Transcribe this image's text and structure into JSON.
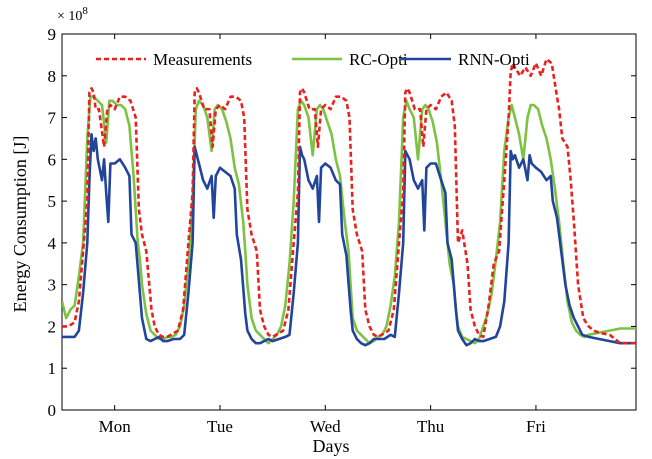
{
  "chart_data": {
    "type": "line",
    "title": "",
    "xlabel": "Days",
    "ylabel": "Energy Consumption [J]",
    "y_multiplier_label": "× 10",
    "y_multiplier_exponent": "8",
    "categories": [
      "Mon",
      "Tue",
      "Wed",
      "Thu",
      "Fri"
    ],
    "x_tick_positions": [
      0.5,
      1.5,
      2.5,
      3.5,
      4.5
    ],
    "xlim": [
      0,
      5.45
    ],
    "ylim": [
      0,
      9
    ],
    "y_ticks": [
      0,
      1,
      2,
      3,
      4,
      5,
      6,
      7,
      8,
      9
    ],
    "y_tick_labels": [
      "0",
      "1",
      "2",
      "3",
      "4",
      "5",
      "6",
      "7",
      "8",
      "9"
    ],
    "grid": false,
    "legend_position": "top",
    "series": [
      {
        "name": "Measurements",
        "color": "#e8221f",
        "dash": "dashed",
        "x": [
          0,
          0.06,
          0.12,
          0.16,
          0.2,
          0.24,
          0.26,
          0.28,
          0.3,
          0.32,
          0.35,
          0.4,
          0.43,
          0.46,
          0.5,
          0.55,
          0.6,
          0.65,
          0.7,
          0.73,
          0.76,
          0.8,
          0.85,
          0.88,
          0.92,
          0.96,
          1.0,
          1.1,
          1.15,
          1.2,
          1.24,
          1.26,
          1.28,
          1.3,
          1.35,
          1.4,
          1.43,
          1.46,
          1.5,
          1.55,
          1.6,
          1.65,
          1.7,
          1.73,
          1.76,
          1.8,
          1.85,
          1.88,
          1.92,
          1.96,
          2.0,
          2.1,
          2.15,
          2.2,
          2.24,
          2.26,
          2.28,
          2.3,
          2.35,
          2.4,
          2.43,
          2.46,
          2.5,
          2.55,
          2.6,
          2.65,
          2.7,
          2.73,
          2.76,
          2.8,
          2.85,
          2.88,
          2.92,
          2.96,
          3.0,
          3.1,
          3.15,
          3.2,
          3.24,
          3.26,
          3.28,
          3.3,
          3.35,
          3.4,
          3.43,
          3.46,
          3.5,
          3.55,
          3.6,
          3.65,
          3.7,
          3.73,
          3.76,
          3.8,
          3.85,
          3.88,
          3.92,
          3.96,
          4.0,
          4.05,
          4.1,
          4.15,
          4.2,
          4.24,
          4.26,
          4.28,
          4.3,
          4.35,
          4.4,
          4.45,
          4.5,
          4.55,
          4.6,
          4.65,
          4.7,
          4.72,
          4.75,
          4.8,
          4.83,
          4.86,
          4.9,
          4.95,
          5.0,
          5.05,
          5.1,
          5.2,
          5.3,
          5.45
        ],
        "y": [
          2.0,
          2.0,
          2.1,
          2.6,
          3.8,
          5.0,
          7.6,
          7.7,
          7.6,
          7.2,
          7.2,
          6.3,
          7.2,
          7.3,
          7.2,
          7.5,
          7.5,
          7.4,
          7.0,
          4.8,
          4.2,
          3.8,
          2.4,
          2.0,
          1.8,
          1.75,
          1.75,
          1.9,
          2.4,
          4.0,
          5.2,
          7.6,
          7.7,
          7.6,
          7.2,
          7.2,
          6.3,
          7.2,
          7.3,
          7.2,
          7.5,
          7.5,
          7.4,
          7.0,
          4.8,
          4.2,
          3.8,
          2.4,
          2.0,
          1.8,
          1.75,
          1.9,
          2.4,
          4.0,
          5.2,
          7.6,
          7.7,
          7.6,
          7.2,
          7.2,
          6.3,
          7.2,
          7.3,
          7.2,
          7.5,
          7.5,
          7.4,
          7.0,
          4.8,
          4.2,
          3.8,
          2.4,
          2.0,
          1.8,
          1.75,
          1.9,
          2.4,
          4.0,
          5.2,
          7.6,
          7.7,
          7.6,
          7.2,
          7.2,
          6.3,
          7.2,
          7.3,
          7.2,
          7.5,
          7.6,
          7.4,
          6.8,
          4.0,
          4.3,
          3.5,
          2.4,
          2.0,
          1.8,
          1.75,
          2.5,
          3.5,
          3.8,
          5.5,
          7.0,
          8.1,
          8.3,
          8.2,
          8.0,
          8.2,
          8.0,
          8.3,
          8.0,
          8.4,
          8.3,
          7.5,
          7.2,
          6.5,
          6.3,
          5.5,
          4.5,
          3.0,
          2.2,
          2.0,
          1.9,
          1.85,
          1.8,
          1.6,
          1.6
        ]
      },
      {
        "name": "RC-Opti",
        "color": "#7dc242",
        "dash": "solid",
        "x": [
          0,
          0.04,
          0.08,
          0.12,
          0.16,
          0.2,
          0.24,
          0.27,
          0.3,
          0.34,
          0.38,
          0.42,
          0.45,
          0.48,
          0.52,
          0.56,
          0.6,
          0.64,
          0.68,
          0.72,
          0.74,
          0.76,
          0.8,
          0.84,
          0.88,
          0.92,
          0.96,
          1.0,
          1.04,
          1.08,
          1.12,
          1.16,
          1.2,
          1.24,
          1.27,
          1.3,
          1.34,
          1.38,
          1.42,
          1.45,
          1.48,
          1.52,
          1.56,
          1.6,
          1.64,
          1.68,
          1.72,
          1.74,
          1.76,
          1.8,
          1.84,
          1.88,
          1.92,
          1.96,
          2.0,
          2.04,
          2.08,
          2.12,
          2.16,
          2.2,
          2.24,
          2.27,
          2.3,
          2.34,
          2.38,
          2.42,
          2.45,
          2.48,
          2.52,
          2.56,
          2.6,
          2.64,
          2.68,
          2.72,
          2.74,
          2.76,
          2.8,
          2.84,
          2.88,
          2.92,
          2.96,
          3.0,
          3.04,
          3.08,
          3.12,
          3.16,
          3.2,
          3.24,
          3.27,
          3.3,
          3.34,
          3.38,
          3.42,
          3.45,
          3.48,
          3.52,
          3.56,
          3.6,
          3.64,
          3.68,
          3.72,
          3.74,
          3.76,
          3.8,
          3.84,
          3.88,
          3.92,
          3.96,
          4.0,
          4.04,
          4.08,
          4.12,
          4.16,
          4.2,
          4.24,
          4.27,
          4.3,
          4.34,
          4.38,
          4.42,
          4.45,
          4.48,
          4.52,
          4.56,
          4.6,
          4.64,
          4.68,
          4.72,
          4.76,
          4.8,
          4.84,
          4.88,
          4.92,
          4.96,
          5.0,
          5.1,
          5.2,
          5.3,
          5.45
        ],
        "y": [
          2.6,
          2.2,
          2.4,
          2.5,
          3.2,
          4.0,
          6.5,
          7.5,
          7.5,
          7.4,
          7.3,
          6.4,
          7.4,
          7.4,
          7.3,
          7.3,
          7.2,
          6.8,
          5.6,
          4.0,
          3.6,
          3.0,
          2.3,
          1.9,
          1.8,
          1.7,
          1.7,
          1.75,
          1.75,
          1.8,
          2.0,
          2.5,
          3.5,
          5.0,
          7.2,
          7.4,
          7.3,
          7.0,
          6.2,
          7.2,
          7.3,
          7.2,
          6.9,
          6.5,
          5.8,
          5.4,
          4.5,
          3.8,
          3.0,
          2.2,
          1.9,
          1.8,
          1.7,
          1.6,
          1.7,
          1.8,
          2.0,
          2.5,
          3.5,
          5.0,
          7.2,
          7.4,
          7.3,
          7.0,
          6.1,
          7.2,
          7.3,
          7.2,
          6.9,
          6.6,
          6.0,
          5.6,
          4.6,
          3.8,
          3.0,
          2.2,
          1.9,
          1.8,
          1.7,
          1.6,
          1.65,
          1.75,
          1.8,
          2.0,
          2.5,
          3.2,
          4.5,
          7.0,
          7.4,
          7.2,
          7.0,
          6.0,
          7.2,
          7.3,
          7.2,
          6.9,
          6.4,
          5.5,
          4.5,
          3.5,
          3.0,
          2.4,
          2.0,
          1.75,
          1.7,
          1.65,
          1.6,
          1.7,
          2.0,
          2.3,
          2.8,
          3.6,
          4.5,
          6.2,
          7.0,
          7.3,
          7.0,
          6.6,
          6.0,
          7.0,
          7.3,
          7.3,
          7.2,
          6.8,
          6.5,
          6.0,
          5.3,
          4.5,
          3.5,
          2.6,
          2.1,
          1.9,
          1.8,
          1.75,
          1.8,
          1.85,
          1.9,
          1.95,
          1.95
        ]
      },
      {
        "name": "RNN-Opti",
        "color": "#22459c",
        "dash": "solid",
        "x": [
          0,
          0.06,
          0.12,
          0.16,
          0.2,
          0.24,
          0.26,
          0.28,
          0.3,
          0.32,
          0.34,
          0.38,
          0.4,
          0.42,
          0.44,
          0.46,
          0.5,
          0.55,
          0.6,
          0.64,
          0.66,
          0.7,
          0.74,
          0.76,
          0.8,
          0.84,
          0.88,
          0.92,
          0.96,
          1.0,
          1.06,
          1.12,
          1.16,
          1.2,
          1.24,
          1.26,
          1.28,
          1.3,
          1.34,
          1.38,
          1.42,
          1.44,
          1.46,
          1.5,
          1.55,
          1.6,
          1.64,
          1.66,
          1.7,
          1.74,
          1.76,
          1.8,
          1.84,
          1.88,
          1.92,
          1.96,
          2.0,
          2.06,
          2.12,
          2.16,
          2.2,
          2.24,
          2.26,
          2.28,
          2.3,
          2.34,
          2.38,
          2.42,
          2.44,
          2.46,
          2.5,
          2.55,
          2.6,
          2.64,
          2.66,
          2.7,
          2.74,
          2.76,
          2.8,
          2.84,
          2.88,
          2.92,
          2.96,
          3.0,
          3.06,
          3.12,
          3.16,
          3.2,
          3.24,
          3.26,
          3.28,
          3.3,
          3.34,
          3.38,
          3.42,
          3.44,
          3.46,
          3.5,
          3.55,
          3.6,
          3.64,
          3.66,
          3.7,
          3.74,
          3.76,
          3.8,
          3.84,
          3.88,
          3.92,
          3.96,
          4.0,
          4.06,
          4.12,
          4.16,
          4.2,
          4.24,
          4.26,
          4.28,
          4.3,
          4.34,
          4.38,
          4.42,
          4.44,
          4.46,
          4.5,
          4.55,
          4.6,
          4.64,
          4.66,
          4.7,
          4.74,
          4.78,
          4.82,
          4.86,
          4.9,
          4.94,
          5.0,
          5.1,
          5.2,
          5.3,
          5.45
        ],
        "y": [
          1.75,
          1.75,
          1.75,
          1.9,
          2.8,
          4.0,
          5.5,
          6.6,
          6.2,
          6.5,
          6.0,
          5.5,
          6.0,
          5.2,
          4.5,
          5.9,
          5.9,
          6.0,
          5.8,
          5.6,
          4.2,
          4.0,
          2.8,
          2.2,
          1.7,
          1.65,
          1.7,
          1.75,
          1.65,
          1.65,
          1.7,
          1.7,
          1.8,
          2.8,
          4.0,
          6.3,
          6.1,
          5.9,
          5.5,
          5.3,
          5.6,
          4.6,
          5.6,
          5.8,
          5.7,
          5.6,
          5.3,
          4.2,
          3.6,
          2.3,
          1.9,
          1.7,
          1.6,
          1.6,
          1.65,
          1.7,
          1.65,
          1.7,
          1.75,
          1.8,
          2.8,
          4.0,
          6.3,
          6.1,
          6.0,
          5.5,
          5.3,
          5.6,
          4.5,
          5.8,
          5.9,
          5.8,
          5.5,
          5.4,
          4.2,
          3.7,
          2.4,
          1.9,
          1.7,
          1.6,
          1.55,
          1.6,
          1.7,
          1.7,
          1.7,
          1.8,
          1.75,
          2.8,
          4.0,
          6.2,
          6.1,
          6.0,
          5.5,
          5.3,
          5.5,
          4.3,
          5.8,
          5.9,
          5.9,
          5.5,
          5.2,
          4.0,
          3.6,
          2.4,
          1.9,
          1.7,
          1.55,
          1.6,
          1.7,
          1.65,
          1.65,
          1.7,
          1.75,
          2.0,
          2.6,
          4.0,
          6.2,
          6.0,
          6.1,
          5.8,
          6.0,
          5.5,
          6.1,
          5.9,
          5.8,
          5.7,
          5.5,
          5.6,
          5.0,
          4.6,
          3.8,
          3.0,
          2.5,
          2.2,
          2.0,
          1.8,
          1.75,
          1.7,
          1.65,
          1.6,
          1.6
        ]
      }
    ]
  }
}
